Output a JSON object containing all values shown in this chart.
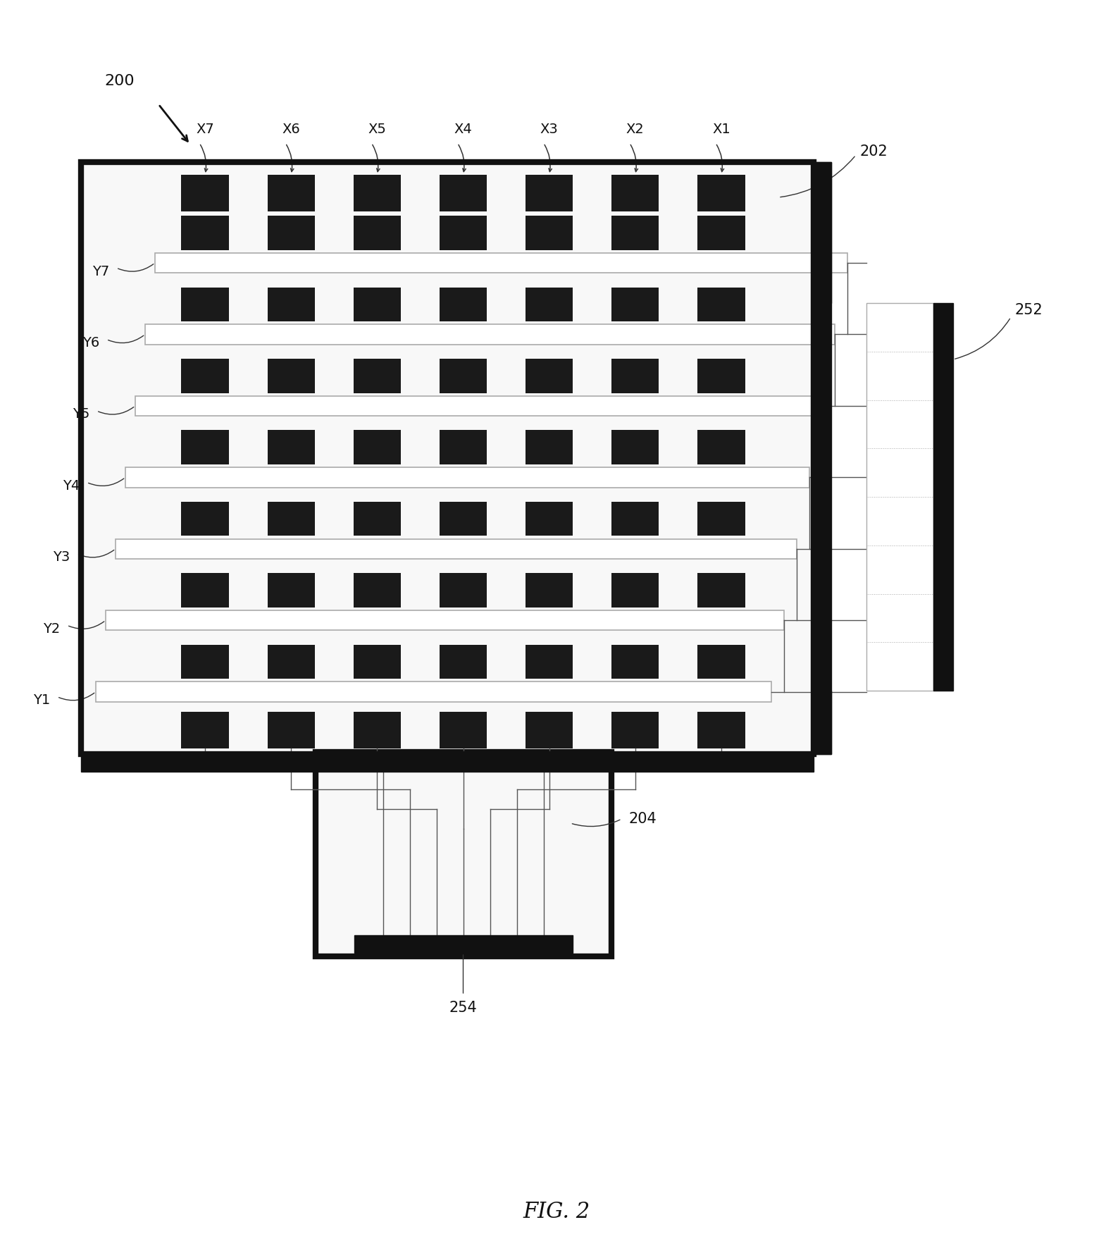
{
  "fig_label": "FIG. 2",
  "label_200": "200",
  "label_202": "202",
  "label_204": "204",
  "label_252": "252",
  "label_254": "254",
  "n_cols": 7,
  "n_rows": 7,
  "x_labels": [
    "X7",
    "X6",
    "X5",
    "X4",
    "X3",
    "X2",
    "X1"
  ],
  "y_labels": [
    "Y7",
    "Y6",
    "Y5",
    "Y4",
    "Y3",
    "Y2",
    "Y1"
  ],
  "bg_color": "#ffffff",
  "cell_dark": "#1a1a1a",
  "strip_fc": "#ffffff",
  "strip_ec": "#aaaaaa",
  "panel_fc": "#f8f8f8",
  "panel_ec": "#bbbbbb",
  "thick_ec": "#111111",
  "wire_color": "#555555",
  "label_color": "#111111",
  "outer_lw": 6,
  "strip_lw": 1.2,
  "wire_lw": 1.0
}
